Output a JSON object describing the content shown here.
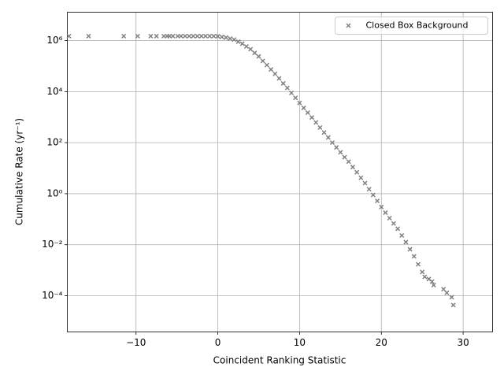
{
  "chart_data": {
    "type": "scatter",
    "x_label": "Coincident Ranking Statistic",
    "y_label": "Cumulative Rate (yr⁻¹)",
    "log_y": true,
    "grid": true,
    "legend_corner": "upper right",
    "xlim": [
      -18.4,
      33.6
    ],
    "ylim": [
      3.8e-06,
      13000000.0
    ],
    "xticks": [
      {
        "value": -10,
        "label": "−10"
      },
      0,
      10,
      20,
      30
    ],
    "yticks": [
      {
        "value": 0.0001,
        "label": "10⁻⁴"
      },
      {
        "value": 0.01,
        "label": "10⁻²"
      },
      {
        "value": 1,
        "label": "10⁰"
      },
      {
        "value": 100,
        "label": "10²"
      },
      {
        "value": 10000,
        "label": "10⁴"
      },
      {
        "value": 1000000,
        "label": "10⁶"
      }
    ],
    "series": [
      {
        "name": "Closed Box Background",
        "color": "#808080",
        "x": [
          -18.2,
          -15.8,
          -11.5,
          -9.8,
          -8.2,
          -7.5,
          -6.6,
          -6.2,
          -5.9,
          -5.5,
          -4.9,
          -4.5,
          -4,
          -3.5,
          -3,
          -2.5,
          -2,
          -1.5,
          -1,
          -0.5,
          0,
          0.5,
          1,
          1.5,
          2,
          2.5,
          3,
          3.5,
          4,
          4.5,
          5,
          5.5,
          6,
          6.5,
          7,
          7.5,
          8,
          8.5,
          9,
          9.5,
          10,
          10.5,
          11,
          11.5,
          12,
          12.5,
          13,
          13.5,
          14,
          14.5,
          15,
          15.5,
          16,
          16.5,
          17,
          17.5,
          18,
          18.5,
          19,
          19.5,
          20,
          20.5,
          21,
          21.5,
          22,
          22.5,
          23,
          23.5,
          24,
          24.5,
          25,
          25.3,
          25.8,
          26.2,
          26.4,
          27.6,
          28.0,
          28.6,
          28.8
        ],
        "values": [
          1500000.0,
          1500000.0,
          1500000.0,
          1500000.0,
          1500000.0,
          1500000.0,
          1500000.0,
          1500000.0,
          1500000.0,
          1500000.0,
          1500000.0,
          1500000.0,
          1500000.0,
          1500000.0,
          1500000.0,
          1500000.0,
          1500000.0,
          1500000.0,
          1500000.0,
          1500000.0,
          1480000.0,
          1400000.0,
          1320000.0,
          1200000.0,
          1100000.0,
          910000.0,
          760000.0,
          590000.0,
          460000.0,
          330000.0,
          240000.0,
          160000.0,
          110000.0,
          74000.0,
          50000.0,
          33000.0,
          21000.0,
          14000.0,
          8900,
          5700,
          3600,
          2300,
          1500,
          970,
          620,
          390,
          250,
          160,
          100,
          65,
          42,
          27,
          18,
          11,
          6.9,
          4.2,
          2.6,
          1.5,
          0.89,
          0.52,
          0.3,
          0.18,
          0.11,
          0.068,
          0.042,
          0.023,
          0.0126,
          0.0066,
          0.0035,
          0.0017,
          0.00085,
          0.00055,
          0.00045,
          0.00036,
          0.00026,
          0.00018,
          0.00013,
          8.7e-05,
          4.3e-05
        ]
      }
    ]
  }
}
